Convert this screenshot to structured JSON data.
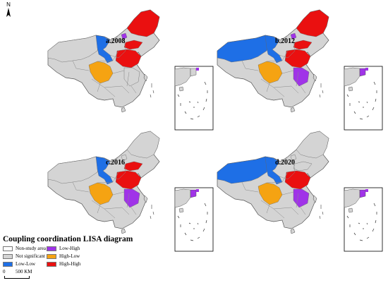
{
  "north_label": "N",
  "panels": [
    {
      "label": "a.2008",
      "regions": {
        "northeast": "High-High",
        "shandong": "High-High",
        "anhui_jiangsu": "High-High",
        "sichuan": "High-Low",
        "gansu_ningxia": "Low-Low",
        "beijing_tianjin": "Low-High",
        "zhejiang_fujian": "Not significant",
        "xinjiang": "Not significant",
        "inset": "Not significant"
      }
    },
    {
      "label": "b.2012",
      "regions": {
        "northeast": "High-High",
        "shandong": "High-High",
        "anhui_jiangsu": "High-High",
        "sichuan": "High-Low",
        "gansu_ningxia": "Low-Low",
        "beijing_tianjin": "Low-High",
        "zhejiang_fujian": "Low-High",
        "xinjiang": "Low-Low",
        "inset": "Low-High"
      }
    },
    {
      "label": "c.2016",
      "regions": {
        "northeast": "Not significant",
        "shandong": "High-High",
        "anhui_jiangsu": "High-High",
        "sichuan": "High-Low",
        "gansu_ningxia": "Low-Low",
        "beijing_tianjin": "Not significant",
        "zhejiang_fujian": "Low-High",
        "xinjiang": "Not significant",
        "inset": "Low-High"
      }
    },
    {
      "label": "d.2020",
      "regions": {
        "northeast": "Not significant",
        "shandong": "Not significant",
        "anhui_jiangsu": "High-High",
        "sichuan": "High-Low",
        "gansu_ningxia": "Low-Low",
        "beijing_tianjin": "Not significant",
        "zhejiang_fujian": "Low-High",
        "xinjiang": "Low-Low",
        "inset": "Low-High"
      }
    }
  ],
  "legend": {
    "title": "Coupling coordination LISA diagram",
    "items": [
      {
        "label": "Non-study area",
        "color": "#ffffff"
      },
      {
        "label": "Not significant",
        "color": "#d4d4d4"
      },
      {
        "label": "Low-Low",
        "color": "#1e6fe6"
      },
      {
        "label": "Low-High",
        "color": "#a033e8"
      },
      {
        "label": "High-Low",
        "color": "#f5a312"
      },
      {
        "label": "High-High",
        "color": "#ea1010"
      }
    ]
  },
  "scale_bar": {
    "zero": "0",
    "distance": "500 KM"
  }
}
